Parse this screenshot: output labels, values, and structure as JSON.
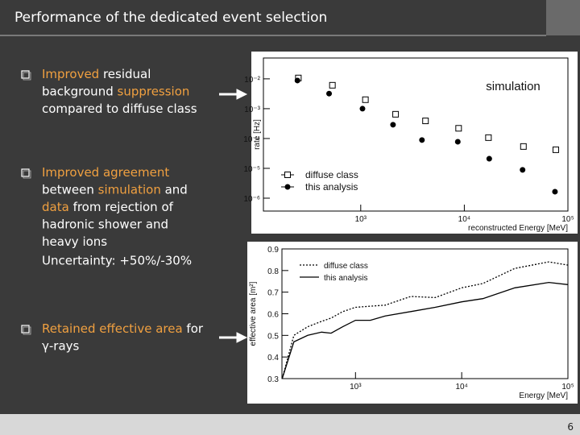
{
  "slide": {
    "title": "Performance of the dedicated event selection",
    "page_number": "6",
    "bullets": [
      {
        "lines": [
          [
            {
              "text": "Improved",
              "color": "#f0a040"
            },
            {
              "text": " residual",
              "color": "#ffffff"
            }
          ],
          [
            {
              "text": "background ",
              "color": "#ffffff"
            },
            {
              "text": "suppression",
              "color": "#f0a040"
            }
          ],
          [
            {
              "text": "compared to diffuse class",
              "color": "#ffffff"
            }
          ]
        ]
      },
      {
        "lines": [
          [
            {
              "text": "Improved agreement",
              "color": "#f0a040"
            }
          ],
          [
            {
              "text": "between ",
              "color": "#ffffff"
            },
            {
              "text": "simulation",
              "color": "#f0a040"
            },
            {
              "text": " and",
              "color": "#ffffff"
            }
          ],
          [
            {
              "text": "data",
              "color": "#f0a040"
            },
            {
              "text": " from rejection of",
              "color": "#ffffff"
            }
          ],
          [
            {
              "text": "hadronic shower and",
              "color": "#ffffff"
            }
          ],
          [
            {
              "text": "heavy ions",
              "color": "#ffffff"
            }
          ],
          [
            {
              "text": "Uncertainty: +50%/-30%",
              "color": "#ffffff"
            }
          ]
        ]
      },
      {
        "lines": [
          [
            {
              "text": "Retained effective area",
              "color": "#f0a040"
            },
            {
              "text": " for",
              "color": "#ffffff"
            }
          ],
          [
            {
              "text": "γ-rays",
              "color": "#ffffff"
            }
          ]
        ]
      }
    ]
  },
  "chart_data": [
    {
      "type": "scatter",
      "xlabel": "reconstructed Energy [MeV]",
      "ylabel": "rate [Hz]",
      "annotation": "simulation",
      "xlog": true,
      "ylog": true,
      "xlim": [
        115,
        100000
      ],
      "ylim": [
        3.7e-07,
        0.05
      ],
      "xticks": [
        {
          "value": 1000,
          "label": "10³"
        },
        {
          "value": 10000,
          "label": "10⁴"
        },
        {
          "value": 100000,
          "label": "10⁵"
        }
      ],
      "yticks": [
        {
          "value": 1e-06,
          "label": "10⁻⁶"
        },
        {
          "value": 1e-05,
          "label": "10⁻⁵"
        },
        {
          "value": 0.0001,
          "label": "10⁻⁴"
        },
        {
          "value": 0.001,
          "label": "10⁻³"
        },
        {
          "value": 0.01,
          "label": "10⁻²"
        }
      ],
      "legend": "lower left",
      "series": [
        {
          "name": "diffuse class",
          "color": "#000000",
          "marker": "open-square",
          "x": [
            250,
            533,
            1110,
            2170,
            4220,
            8810,
            17100,
            37200,
            76400
          ],
          "values": [
            0.0107,
            0.0061,
            0.002,
            0.00065,
            0.00039,
            0.00022,
            0.000107,
            5.4e-05,
            4.2e-05
          ]
        },
        {
          "name": "this analysis",
          "color": "#000000",
          "marker": "filled-circle",
          "x": [
            245,
            495,
            1040,
            2050,
            3900,
            8650,
            17400,
            36500,
            75000
          ],
          "values": [
            0.0088,
            0.0032,
            0.001,
            0.00029,
            8.9e-05,
            7.8e-05,
            2.1e-05,
            8.9e-06,
            1.65e-06
          ]
        }
      ]
    },
    {
      "type": "line",
      "xlabel": "Energy [MeV]",
      "ylabel": "effective area [m²]",
      "xlog": true,
      "ylog": false,
      "xlim": [
        203,
        100000
      ],
      "ylim": [
        0.3,
        0.9
      ],
      "xticks": [
        {
          "value": 1000,
          "label": "10³"
        },
        {
          "value": 10000,
          "label": "10⁴"
        },
        {
          "value": 100000,
          "label": "10⁵"
        }
      ],
      "yticks": [
        0.3,
        0.4,
        0.5,
        0.6,
        0.7,
        0.8,
        0.9
      ],
      "legend": "upper left",
      "x": [
        204,
        263,
        355,
        479,
        589,
        759,
        1000,
        1380,
        1905,
        3311,
        5623,
        10000,
        15849,
        31623,
        66069,
        100000
      ],
      "series": [
        {
          "name": "diffuse class",
          "color": "#000000",
          "line_style": "dotted",
          "values": [
            0.3,
            0.5,
            0.54,
            0.565,
            0.58,
            0.61,
            0.63,
            0.635,
            0.64,
            0.68,
            0.675,
            0.72,
            0.74,
            0.81,
            0.84,
            0.825
          ]
        },
        {
          "name": "this analysis",
          "color": "#000000",
          "line_style": "solid",
          "values": [
            0.3,
            0.47,
            0.5,
            0.515,
            0.51,
            0.54,
            0.57,
            0.57,
            0.59,
            0.61,
            0.63,
            0.655,
            0.67,
            0.72,
            0.745,
            0.735
          ]
        }
      ]
    }
  ]
}
